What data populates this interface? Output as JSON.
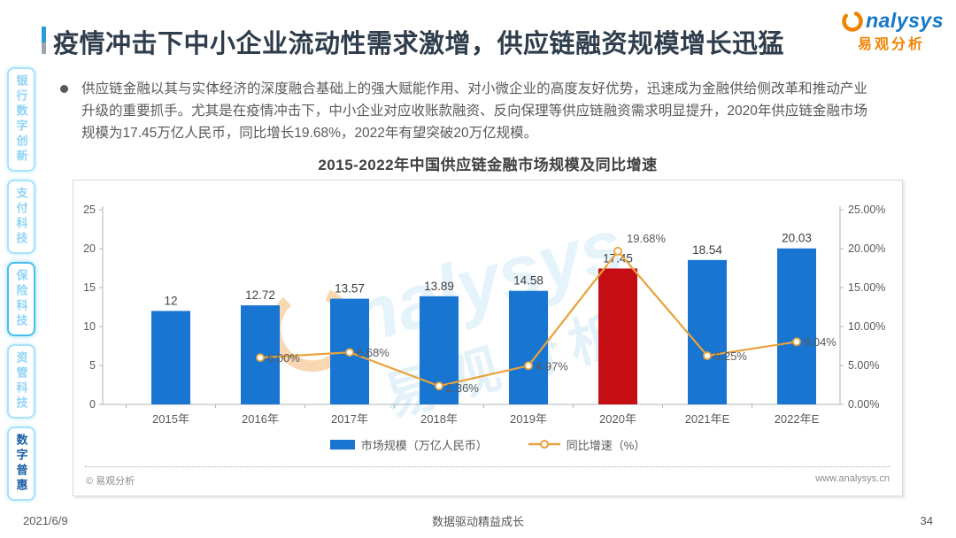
{
  "header": {
    "title": "疫情冲击下中小企业流动性需求激增，供应链融资规模增长迅猛",
    "logo": {
      "brand_text": "nalysys",
      "brand_cn": "易观分析"
    }
  },
  "sidebar": {
    "items": [
      {
        "label": "银行数字创新"
      },
      {
        "label": "支付科技"
      },
      {
        "label": "保险科技"
      },
      {
        "label": "资管科技"
      },
      {
        "label": "数字普惠"
      }
    ]
  },
  "intro": {
    "text": "供应链金融以其与实体经济的深度融合基础上的强大赋能作用、对小微企业的高度友好优势，迅速成为金融供给侧改革和推动产业升级的重要抓手。尤其是在疫情冲击下，中小企业对应收账款融资、反向保理等供应链融资需求明显提升，2020年供应链金融市场规模为17.45万亿人民币，同比增长19.68%，2022年有望突破20万亿规模。"
  },
  "chart_data": {
    "type": "bar+line",
    "title": "2015-2022年中国供应链金融市场规模及同比增速",
    "categories": [
      "2015年",
      "2016年",
      "2017年",
      "2018年",
      "2019年",
      "2020年",
      "2021年E",
      "2022年E"
    ],
    "series": [
      {
        "name": "市场规模（万亿人民币）",
        "type": "bar",
        "unit": "万亿人民币",
        "values": [
          12,
          12.72,
          13.57,
          13.89,
          14.58,
          17.45,
          18.54,
          20.03
        ],
        "labels": [
          "12",
          "12.72",
          "13.57",
          "13.89",
          "14.58",
          "17.45",
          "18.54",
          "20.03"
        ],
        "highlight_index": 5
      },
      {
        "name": "同比增速（%）",
        "type": "line",
        "unit": "%",
        "values": [
          null,
          6.0,
          6.68,
          2.36,
          4.97,
          19.68,
          6.25,
          8.04
        ],
        "labels": [
          "",
          "6.00%",
          "6.68%",
          "2.36%",
          "4.97%",
          "19.68%",
          "6.25%",
          "8.04%"
        ]
      }
    ],
    "left_axis": {
      "min": 0,
      "max": 25,
      "tick_labels": [
        "0",
        "5",
        "10",
        "15",
        "20",
        "25"
      ]
    },
    "right_axis": {
      "min": 0,
      "max": 25,
      "tick_labels": [
        "0.00%",
        "5.00%",
        "10.00%",
        "15.00%",
        "20.00%",
        "25.00%"
      ]
    },
    "legend_position": "bottom",
    "grid": false,
    "colors": {
      "bar": "#1875D1",
      "bar_highlight": "#C50E13",
      "line": "#E9A23B",
      "marker_fill": "#FFFFFF"
    }
  },
  "watermark": {
    "text": "nalysys",
    "text_cn": "易观分析"
  },
  "card": {
    "copyright": "© 易观分析",
    "website": "www.analysys.cn"
  },
  "footer": {
    "date": "2021/6/9",
    "tagline": "数据驱动精益成长",
    "page": "34"
  }
}
